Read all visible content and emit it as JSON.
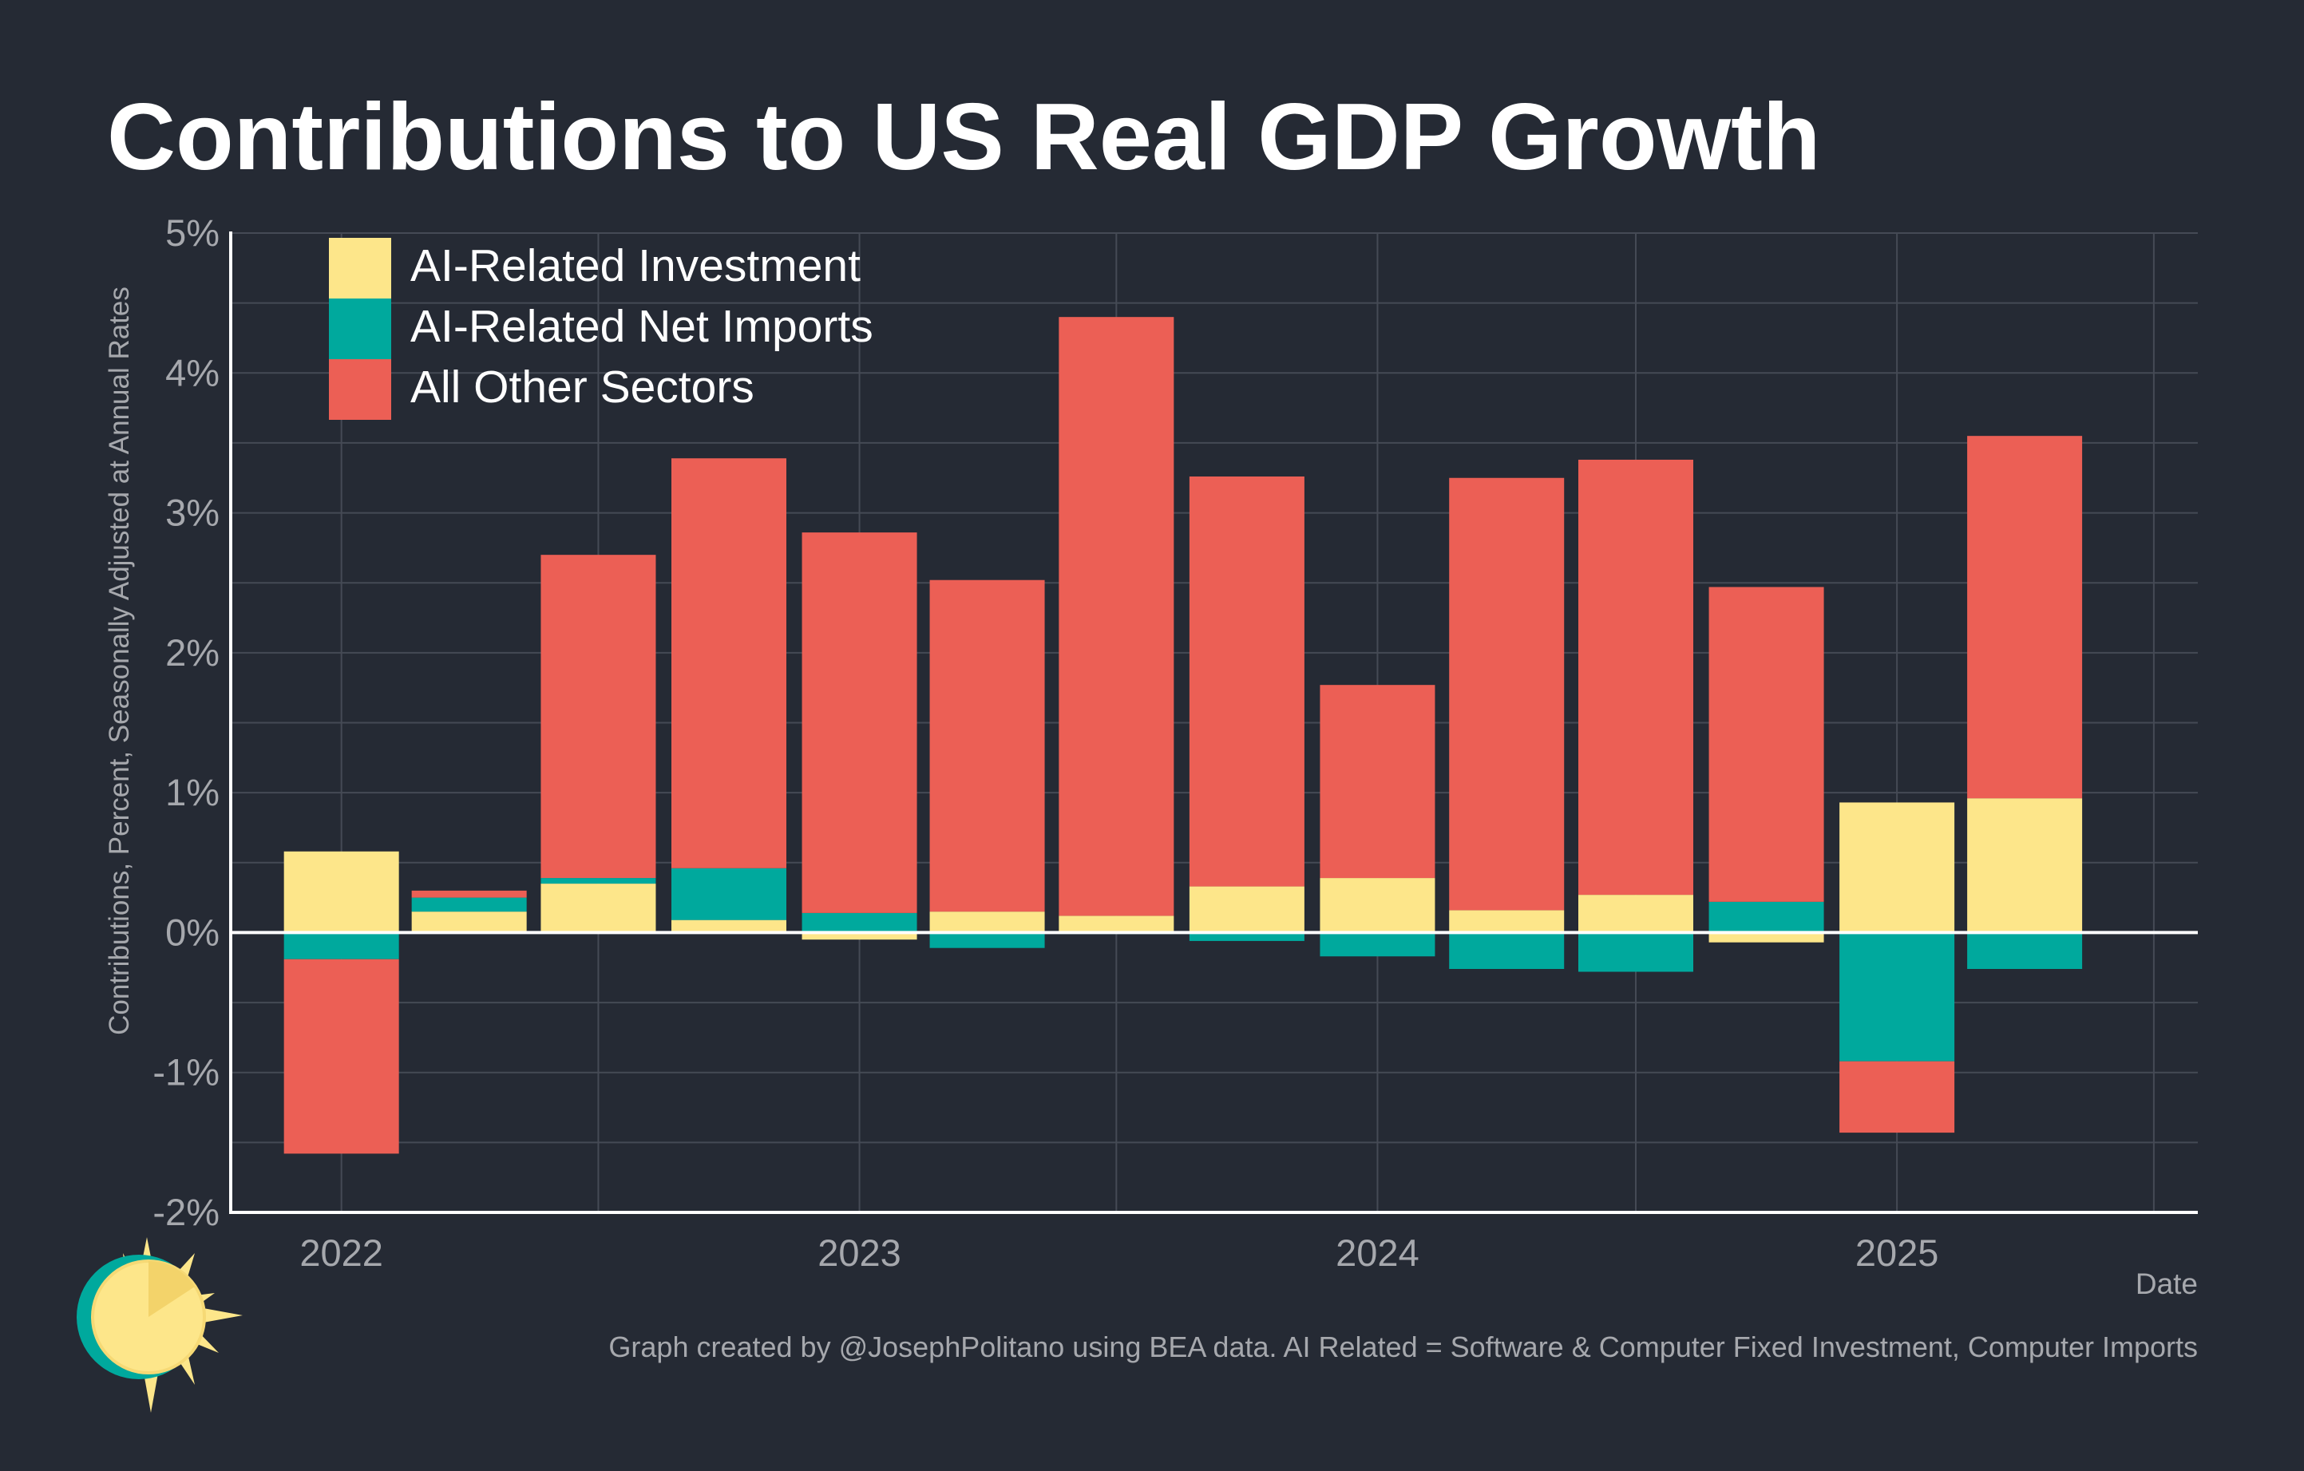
{
  "title": "Contributions to US Real GDP Growth",
  "ylabel": "Contributions, Percent, Seasonally Adjusted at Annual Rates",
  "xlabel": "Date",
  "footer": "Graph created by @JosephPolitano using BEA data. AI Related = Software & Computer Fixed Investment, Computer Imports",
  "colors": {
    "background": "#252a34",
    "ai_investment": "#fde68a",
    "ai_net_imports": "#00a99d",
    "other_sectors": "#ec5f55",
    "grid": "#454a55",
    "axis_text": "#a6a8ad"
  },
  "logo_icon": "sun-logo-icon",
  "chart_data": {
    "type": "bar",
    "stacked": true,
    "title": "Contributions to US Real GDP Growth",
    "xlabel": "Date",
    "ylabel": "Contributions, Percent, Seasonally Adjusted at Annual Rates",
    "ylim": [
      -2,
      5
    ],
    "yticks": [
      -2,
      -1,
      0,
      1,
      2,
      3,
      4,
      5
    ],
    "ytick_labels": [
      "-2%",
      "-1%",
      "0%",
      "1%",
      "2%",
      "3%",
      "4%",
      "5%"
    ],
    "xlim": [
      "2021-10-15",
      "2025-08-01"
    ],
    "xticks": [
      "2022-01-01",
      "2023-01-01",
      "2024-01-01",
      "2025-01-01"
    ],
    "xtick_labels": [
      "2022",
      "2023",
      "2024",
      "2025"
    ],
    "grid": true,
    "legend_position": "top-left",
    "categories": [
      "2022-01-01",
      "2022-04-01",
      "2022-07-01",
      "2022-10-01",
      "2023-01-01",
      "2023-04-01",
      "2023-07-01",
      "2023-10-01",
      "2024-01-01",
      "2024-04-01",
      "2024-07-01",
      "2024-10-01",
      "2025-01-01",
      "2025-04-01"
    ],
    "series": [
      {
        "name": "AI-Related Investment",
        "color": "#fde68a",
        "values": [
          0.58,
          0.15,
          0.35,
          0.09,
          -0.05,
          0.15,
          0.12,
          0.33,
          0.39,
          0.16,
          0.27,
          -0.07,
          0.93,
          0.96
        ]
      },
      {
        "name": "AI-Related Net Imports",
        "color": "#00a99d",
        "values": [
          -0.19,
          0.1,
          0.04,
          0.37,
          0.14,
          -0.11,
          -0.01,
          -0.06,
          -0.17,
          -0.26,
          -0.28,
          0.22,
          -0.92,
          -0.26
        ]
      },
      {
        "name": "All Other Sectors",
        "color": "#ec5f55",
        "values": [
          -1.39,
          0.05,
          2.31,
          2.93,
          2.72,
          2.37,
          4.28,
          2.93,
          1.38,
          3.09,
          3.11,
          2.25,
          -0.51,
          2.59
        ]
      }
    ]
  }
}
